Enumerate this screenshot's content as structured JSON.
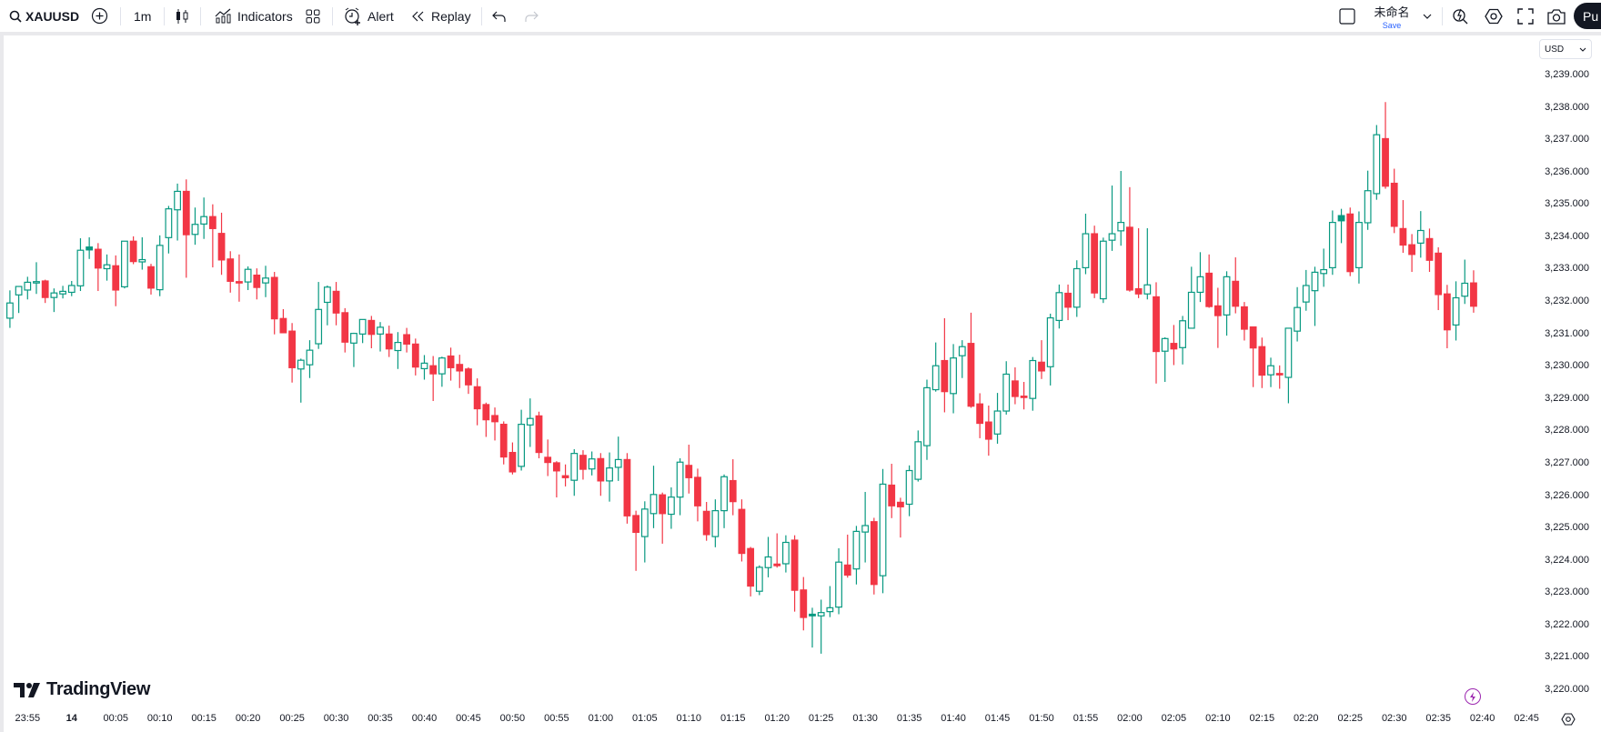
{
  "toolbar": {
    "symbol": "XAUUSD",
    "interval": "1m",
    "indicators_label": "Indicators",
    "alert_label": "Alert",
    "replay_label": "Replay",
    "layout_name": "未命名",
    "save_label": "Save",
    "publish_label": "Pu"
  },
  "price_axis": {
    "currency": "USD"
  },
  "branding": {
    "logo_text": "TradingView"
  },
  "colors": {
    "up": "#089981",
    "down": "#F23645",
    "save_link": "#2962ff",
    "bolt": "#9c27b0"
  },
  "chart_data": {
    "type": "candlestick",
    "symbol": "XAUUSD",
    "interval": "1m",
    "ylim": [
      3219.5,
      3240.2
    ],
    "grid": false,
    "y_ticks": [
      "3,239.000",
      "3,238.000",
      "3,237.000",
      "3,236.000",
      "3,235.000",
      "3,234.000",
      "3,233.000",
      "3,232.000",
      "3,231.000",
      "3,230.000",
      "3,229.000",
      "3,228.000",
      "3,227.000",
      "3,226.000",
      "3,225.000",
      "3,224.000",
      "3,223.000",
      "3,222.000",
      "3,221.000",
      "3,220.000"
    ],
    "y_tick_values": [
      3239,
      3238,
      3237,
      3236,
      3235,
      3234,
      3233,
      3232,
      3231,
      3230,
      3229,
      3228,
      3227,
      3226,
      3225,
      3224,
      3223,
      3222,
      3221,
      3220
    ],
    "x_ticks": [
      "23:55",
      "14",
      "00:05",
      "00:10",
      "00:15",
      "00:20",
      "00:25",
      "00:30",
      "00:35",
      "00:40",
      "00:45",
      "00:50",
      "00:55",
      "01:00",
      "01:05",
      "01:10",
      "01:15",
      "01:20",
      "01:25",
      "01:30",
      "01:35",
      "01:40",
      "01:45",
      "01:50",
      "01:55",
      "02:00",
      "02:05",
      "02:10",
      "02:15",
      "02:20",
      "02:25",
      "02:30",
      "02:35",
      "02:40",
      "02:45"
    ],
    "x_tick_times": [
      "23:55",
      "00:00",
      "00:05",
      "00:10",
      "00:15",
      "00:20",
      "00:25",
      "00:30",
      "00:35",
      "00:40",
      "00:45",
      "00:50",
      "00:55",
      "01:00",
      "01:05",
      "01:10",
      "01:15",
      "01:20",
      "01:25",
      "01:30",
      "01:35",
      "01:40",
      "01:45",
      "01:50",
      "01:55",
      "02:00",
      "02:05",
      "02:10",
      "02:15",
      "02:20",
      "02:25",
      "02:30",
      "02:35",
      "02:40",
      "02:45"
    ],
    "columns": [
      "time",
      "open",
      "high",
      "low",
      "close"
    ],
    "candles": [
      [
        "23:53",
        3231.47,
        3232.33,
        3231.17,
        3231.94
      ],
      [
        "23:54",
        3232.19,
        3232.45,
        3231.63,
        3232.45
      ],
      [
        "23:55",
        3232.34,
        3232.75,
        3232.05,
        3232.58
      ],
      [
        "23:56",
        3232.58,
        3233.2,
        3232.22,
        3232.6
      ],
      [
        "23:57",
        3232.62,
        3232.66,
        3231.94,
        3232.11
      ],
      [
        "23:58",
        3232.11,
        3232.39,
        3231.66,
        3232.25
      ],
      [
        "23:59",
        3232.22,
        3232.47,
        3232.08,
        3232.3
      ],
      [
        "00:00",
        3232.27,
        3232.62,
        3232.15,
        3232.48
      ],
      [
        "00:01",
        3232.47,
        3233.94,
        3232.31,
        3233.57
      ],
      [
        "00:02",
        3233.67,
        3233.97,
        3233.3,
        3233.58
      ],
      [
        "00:03",
        3233.6,
        3233.79,
        3232.31,
        3233.02
      ],
      [
        "00:04",
        3233.0,
        3233.44,
        3232.63,
        3233.12
      ],
      [
        "00:05",
        3233.09,
        3233.41,
        3231.84,
        3232.34
      ],
      [
        "00:06",
        3232.44,
        3233.85,
        3232.39,
        3233.85
      ],
      [
        "00:07",
        3233.85,
        3234.0,
        3233.14,
        3233.22
      ],
      [
        "00:08",
        3233.21,
        3233.97,
        3232.97,
        3233.28
      ],
      [
        "00:09",
        3233.06,
        3233.15,
        3232.2,
        3232.4
      ],
      [
        "00:10",
        3232.35,
        3234.03,
        3232.15,
        3233.72
      ],
      [
        "00:11",
        3233.96,
        3234.94,
        3233.47,
        3234.85
      ],
      [
        "00:12",
        3234.82,
        3235.63,
        3233.87,
        3235.39
      ],
      [
        "00:13",
        3235.39,
        3235.76,
        3232.72,
        3234.05
      ],
      [
        "00:14",
        3234.06,
        3234.89,
        3233.74,
        3234.37
      ],
      [
        "00:15",
        3234.38,
        3235.2,
        3233.92,
        3234.61
      ],
      [
        "00:16",
        3234.61,
        3234.99,
        3233.04,
        3234.24
      ],
      [
        "00:17",
        3234.09,
        3234.73,
        3232.81,
        3233.27
      ],
      [
        "00:18",
        3233.3,
        3233.54,
        3232.26,
        3232.61
      ],
      [
        "00:19",
        3232.6,
        3233.44,
        3231.98,
        3232.56
      ],
      [
        "00:20",
        3232.59,
        3233.07,
        3232.34,
        3232.98
      ],
      [
        "00:21",
        3232.8,
        3233.01,
        3232.05,
        3232.42
      ],
      [
        "00:22",
        3232.56,
        3233.09,
        3232.12,
        3232.71
      ],
      [
        "00:23",
        3232.73,
        3232.9,
        3230.97,
        3231.45
      ],
      [
        "00:24",
        3231.46,
        3231.75,
        3231.02,
        3231.02
      ],
      [
        "00:25",
        3231.07,
        3231.32,
        3229.48,
        3229.94
      ],
      [
        "00:26",
        3229.9,
        3230.22,
        3228.86,
        3230.17
      ],
      [
        "00:27",
        3230.03,
        3230.79,
        3229.62,
        3230.48
      ],
      [
        "00:28",
        3230.68,
        3232.59,
        3230.52,
        3231.74
      ],
      [
        "00:29",
        3231.96,
        3232.48,
        3231.25,
        3232.43
      ],
      [
        "00:30",
        3232.3,
        3232.59,
        3231.25,
        3231.63
      ],
      [
        "00:31",
        3231.64,
        3231.78,
        3230.41,
        3230.73
      ],
      [
        "00:32",
        3230.7,
        3231.02,
        3229.96,
        3231.0
      ],
      [
        "00:33",
        3230.98,
        3231.43,
        3230.7,
        3231.43
      ],
      [
        "00:34",
        3231.4,
        3231.54,
        3230.54,
        3230.97
      ],
      [
        "00:35",
        3230.98,
        3231.35,
        3230.44,
        3231.19
      ],
      [
        "00:36",
        3230.98,
        3231.24,
        3230.27,
        3230.52
      ],
      [
        "00:37",
        3230.47,
        3231.04,
        3229.9,
        3230.72
      ],
      [
        "00:38",
        3230.96,
        3231.17,
        3230.41,
        3230.67
      ],
      [
        "00:39",
        3230.67,
        3230.84,
        3229.7,
        3229.96
      ],
      [
        "00:40",
        3229.91,
        3230.33,
        3229.57,
        3230.08
      ],
      [
        "00:41",
        3230.0,
        3230.3,
        3228.91,
        3229.75
      ],
      [
        "00:42",
        3229.75,
        3230.28,
        3229.35,
        3230.24
      ],
      [
        "00:43",
        3230.3,
        3230.56,
        3229.54,
        3229.94
      ],
      [
        "00:44",
        3230.04,
        3230.34,
        3229.31,
        3229.84
      ],
      [
        "00:45",
        3229.9,
        3229.95,
        3229.13,
        3229.41
      ],
      [
        "00:46",
        3229.35,
        3229.61,
        3228.16,
        3228.67
      ],
      [
        "00:47",
        3228.8,
        3228.86,
        3227.8,
        3228.33
      ],
      [
        "00:48",
        3228.46,
        3228.71,
        3227.69,
        3228.27
      ],
      [
        "00:49",
        3228.19,
        3228.28,
        3226.95,
        3227.18
      ],
      [
        "00:50",
        3227.32,
        3227.63,
        3226.64,
        3226.72
      ],
      [
        "00:51",
        3226.89,
        3228.64,
        3226.76,
        3228.19
      ],
      [
        "00:52",
        3228.17,
        3228.99,
        3227.49,
        3228.37
      ],
      [
        "00:53",
        3228.45,
        3228.58,
        3227.14,
        3227.32
      ],
      [
        "00:54",
        3227.17,
        3227.72,
        3226.59,
        3227.01
      ],
      [
        "00:55",
        3227.0,
        3227.05,
        3225.93,
        3226.75
      ],
      [
        "00:56",
        3226.6,
        3226.95,
        3226.27,
        3226.54
      ],
      [
        "00:57",
        3226.46,
        3227.42,
        3225.98,
        3227.29
      ],
      [
        "00:58",
        3227.23,
        3227.39,
        3226.48,
        3226.8
      ],
      [
        "00:59",
        3226.81,
        3227.35,
        3226.61,
        3227.12
      ],
      [
        "01:00",
        3227.13,
        3227.3,
        3225.98,
        3226.44
      ],
      [
        "01:01",
        3226.44,
        3227.32,
        3225.8,
        3226.84
      ],
      [
        "01:02",
        3226.86,
        3227.81,
        3226.44,
        3227.1
      ],
      [
        "01:03",
        3227.1,
        3227.3,
        3225.12,
        3225.36
      ],
      [
        "01:04",
        3225.37,
        3225.52,
        3223.66,
        3224.85
      ],
      [
        "01:05",
        3224.72,
        3225.81,
        3223.92,
        3225.57
      ],
      [
        "01:06",
        3225.43,
        3226.91,
        3224.98,
        3226.02
      ],
      [
        "01:07",
        3226.01,
        3226.08,
        3224.5,
        3225.43
      ],
      [
        "01:08",
        3225.41,
        3226.24,
        3224.96,
        3225.94
      ],
      [
        "01:09",
        3225.94,
        3227.14,
        3225.38,
        3227.02
      ],
      [
        "01:10",
        3226.92,
        3227.56,
        3226.05,
        3226.54
      ],
      [
        "01:11",
        3226.55,
        3226.82,
        3225.19,
        3225.67
      ],
      [
        "01:12",
        3225.5,
        3225.79,
        3224.59,
        3224.78
      ],
      [
        "01:13",
        3224.72,
        3225.87,
        3224.39,
        3225.52
      ],
      [
        "01:14",
        3225.52,
        3226.64,
        3224.98,
        3226.57
      ],
      [
        "01:15",
        3226.45,
        3227.11,
        3225.38,
        3225.8
      ],
      [
        "01:16",
        3225.56,
        3225.87,
        3223.95,
        3224.2
      ],
      [
        "01:17",
        3224.35,
        3224.4,
        3222.87,
        3223.19
      ],
      [
        "01:18",
        3223.03,
        3223.83,
        3222.91,
        3223.77
      ],
      [
        "01:19",
        3223.76,
        3224.71,
        3223.46,
        3224.09
      ],
      [
        "01:20",
        3223.87,
        3224.82,
        3223.76,
        3223.82
      ],
      [
        "01:21",
        3223.88,
        3224.76,
        3223.61,
        3224.54
      ],
      [
        "01:22",
        3224.61,
        3224.76,
        3222.4,
        3223.06
      ],
      [
        "01:23",
        3223.07,
        3223.47,
        3221.82,
        3222.22
      ],
      [
        "01:24",
        3222.32,
        3222.52,
        3221.29,
        3222.27
      ],
      [
        "01:25",
        3222.27,
        3222.77,
        3221.1,
        3222.37
      ],
      [
        "01:26",
        3222.4,
        3223.19,
        3222.23,
        3222.52
      ],
      [
        "01:27",
        3222.54,
        3224.36,
        3222.32,
        3223.93
      ],
      [
        "01:28",
        3223.84,
        3224.78,
        3223.45,
        3223.53
      ],
      [
        "01:29",
        3223.72,
        3225.05,
        3223.24,
        3224.88
      ],
      [
        "01:30",
        3224.86,
        3226.1,
        3223.92,
        3225.06
      ],
      [
        "01:31",
        3225.18,
        3225.3,
        3222.93,
        3223.24
      ],
      [
        "01:32",
        3223.51,
        3226.81,
        3222.97,
        3226.34
      ],
      [
        "01:33",
        3226.31,
        3226.97,
        3225.29,
        3225.67
      ],
      [
        "01:34",
        3225.78,
        3225.92,
        3224.69,
        3225.64
      ],
      [
        "01:35",
        3225.72,
        3226.92,
        3225.35,
        3226.76
      ],
      [
        "01:36",
        3226.49,
        3228.0,
        3226.42,
        3227.65
      ],
      [
        "01:37",
        3227.53,
        3229.57,
        3227.09,
        3229.32
      ],
      [
        "01:38",
        3229.26,
        3230.72,
        3229.2,
        3230.0
      ],
      [
        "01:39",
        3230.16,
        3231.47,
        3228.56,
        3229.2
      ],
      [
        "01:40",
        3229.14,
        3230.67,
        3228.53,
        3230.24
      ],
      [
        "01:41",
        3230.31,
        3230.79,
        3229.62,
        3230.59
      ],
      [
        "01:42",
        3230.69,
        3231.64,
        3228.7,
        3228.75
      ],
      [
        "01:43",
        3228.82,
        3229.15,
        3227.76,
        3228.22
      ],
      [
        "01:44",
        3228.26,
        3228.77,
        3227.22,
        3227.73
      ],
      [
        "01:45",
        3227.89,
        3229.16,
        3227.59,
        3228.6
      ],
      [
        "01:46",
        3228.6,
        3230.14,
        3228.49,
        3229.74
      ],
      [
        "01:47",
        3229.53,
        3229.95,
        3228.81,
        3229.05
      ],
      [
        "01:48",
        3229.06,
        3229.5,
        3228.65,
        3229.02
      ],
      [
        "01:49",
        3228.99,
        3230.27,
        3228.61,
        3230.16
      ],
      [
        "01:50",
        3230.11,
        3230.79,
        3229.59,
        3229.84
      ],
      [
        "01:51",
        3229.97,
        3231.61,
        3229.39,
        3231.48
      ],
      [
        "01:52",
        3231.4,
        3232.51,
        3231.15,
        3232.26
      ],
      [
        "01:53",
        3232.24,
        3232.51,
        3231.41,
        3231.81
      ],
      [
        "01:54",
        3231.81,
        3233.26,
        3231.51,
        3233.0
      ],
      [
        "01:55",
        3233.03,
        3234.7,
        3232.83,
        3234.08
      ],
      [
        "01:56",
        3234.08,
        3234.33,
        3232.09,
        3232.25
      ],
      [
        "01:57",
        3232.07,
        3233.96,
        3231.94,
        3233.85
      ],
      [
        "01:58",
        3233.88,
        3235.57,
        3233.55,
        3234.08
      ],
      [
        "01:59",
        3234.17,
        3236.02,
        3233.71,
        3234.43
      ],
      [
        "02:00",
        3234.28,
        3235.52,
        3232.29,
        3232.34
      ],
      [
        "02:01",
        3232.38,
        3234.25,
        3232.09,
        3232.22
      ],
      [
        "02:02",
        3232.22,
        3234.25,
        3232.05,
        3232.5
      ],
      [
        "02:03",
        3232.13,
        3232.58,
        3229.45,
        3230.44
      ],
      [
        "02:04",
        3230.45,
        3230.88,
        3229.5,
        3230.84
      ],
      [
        "02:05",
        3230.69,
        3231.26,
        3230.02,
        3230.52
      ],
      [
        "02:06",
        3230.56,
        3231.54,
        3230.04,
        3231.39
      ],
      [
        "02:07",
        3231.16,
        3233.06,
        3231.16,
        3232.27
      ],
      [
        "02:08",
        3232.27,
        3233.51,
        3231.97,
        3232.75
      ],
      [
        "02:09",
        3232.86,
        3233.44,
        3231.79,
        3231.83
      ],
      [
        "02:10",
        3231.85,
        3232.41,
        3230.55,
        3231.55
      ],
      [
        "02:11",
        3231.57,
        3232.92,
        3230.93,
        3232.75
      ],
      [
        "02:12",
        3232.61,
        3233.35,
        3231.62,
        3231.84
      ],
      [
        "02:13",
        3231.82,
        3231.97,
        3230.78,
        3231.13
      ],
      [
        "02:14",
        3231.2,
        3231.2,
        3229.34,
        3230.55
      ],
      [
        "02:15",
        3230.59,
        3230.87,
        3229.31,
        3229.71
      ],
      [
        "02:16",
        3229.72,
        3230.25,
        3229.34,
        3230.0
      ],
      [
        "02:17",
        3229.76,
        3230.01,
        3229.29,
        3229.72
      ],
      [
        "02:18",
        3229.64,
        3231.16,
        3228.84,
        3231.16
      ],
      [
        "02:19",
        3231.07,
        3232.43,
        3230.75,
        3231.8
      ],
      [
        "02:20",
        3231.97,
        3232.96,
        3231.7,
        3232.48
      ],
      [
        "02:21",
        3232.32,
        3233.06,
        3231.23,
        3232.89
      ],
      [
        "02:22",
        3232.85,
        3233.62,
        3232.44,
        3232.97
      ],
      [
        "02:23",
        3233.03,
        3234.8,
        3232.81,
        3234.43
      ],
      [
        "02:24",
        3234.64,
        3234.85,
        3233.79,
        3234.48
      ],
      [
        "02:25",
        3234.69,
        3234.89,
        3232.77,
        3232.91
      ],
      [
        "02:26",
        3233.03,
        3234.77,
        3232.54,
        3234.43
      ],
      [
        "02:27",
        3234.42,
        3236.03,
        3234.2,
        3235.41
      ],
      [
        "02:28",
        3235.32,
        3237.44,
        3235.13,
        3237.14
      ],
      [
        "02:29",
        3237.02,
        3238.15,
        3235.47,
        3235.55
      ],
      [
        "02:30",
        3235.64,
        3236.09,
        3234.1,
        3234.31
      ],
      [
        "02:31",
        3234.24,
        3235.12,
        3233.49,
        3233.73
      ],
      [
        "02:32",
        3233.74,
        3234.07,
        3232.9,
        3233.44
      ],
      [
        "02:33",
        3233.79,
        3234.78,
        3233.34,
        3234.18
      ],
      [
        "02:34",
        3233.93,
        3234.24,
        3232.9,
        3233.26
      ],
      [
        "02:35",
        3233.48,
        3233.66,
        3231.72,
        3232.2
      ],
      [
        "02:36",
        3232.22,
        3232.5,
        3230.54,
        3231.11
      ],
      [
        "02:37",
        3231.26,
        3232.61,
        3230.78,
        3232.1
      ],
      [
        "02:38",
        3232.15,
        3233.28,
        3231.91,
        3232.55
      ],
      [
        "02:39",
        3232.56,
        3232.95,
        3231.64,
        3231.84
      ]
    ]
  }
}
